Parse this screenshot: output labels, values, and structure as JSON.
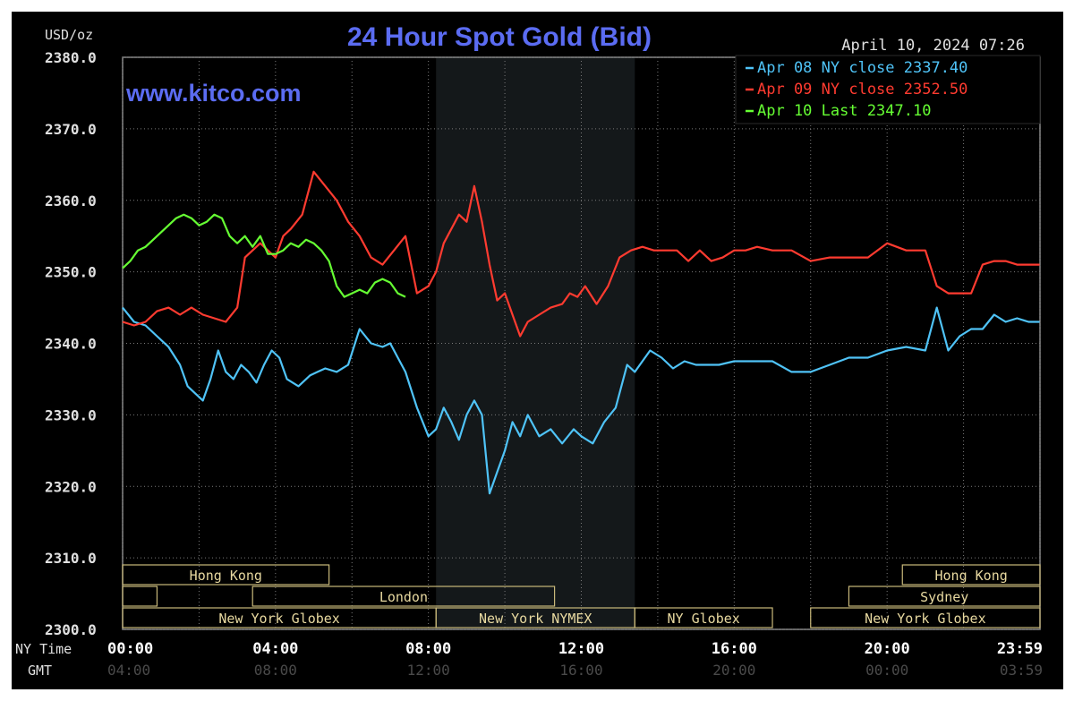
{
  "chart_data": {
    "type": "line",
    "title": "24 Hour Spot Gold (Bid)",
    "watermark": "www.kitco.com",
    "timestamp": "April 10, 2024 07:26",
    "unit_label": "USD/oz",
    "ylim": [
      2300,
      2380
    ],
    "y_ticks": [
      "2380.0",
      "2370.0",
      "2360.0",
      "2350.0",
      "2340.0",
      "2330.0",
      "2320.0",
      "2310.0",
      "2300.0"
    ],
    "x_row_labels": {
      "ny": "NY Time",
      "gmt": "GMT"
    },
    "x_ticks_ny": [
      "00:00",
      "04:00",
      "08:00",
      "12:00",
      "16:00",
      "20:00",
      "23:59"
    ],
    "x_ticks_gmt": [
      "04:00",
      "08:00",
      "12:00",
      "16:00",
      "20:00",
      "00:00",
      "03:59"
    ],
    "x_tick_hours": [
      0,
      4,
      8,
      12,
      16,
      20,
      24
    ],
    "shaded_interval_hours": [
      8.2,
      13.4
    ],
    "sessions": [
      {
        "label": "Hong Kong",
        "start": 0,
        "end": 5.4,
        "row": 0
      },
      {
        "label": "",
        "start": 0,
        "end": 0.9,
        "row": 1
      },
      {
        "label": "London",
        "start": 3.4,
        "end": 11.3,
        "row": 1
      },
      {
        "label": "New York Globex",
        "start": 0,
        "end": 8.2,
        "row": 2
      },
      {
        "label": "New York NYMEX",
        "start": 8.2,
        "end": 13.4,
        "row": 2
      },
      {
        "label": "NY Globex",
        "start": 13.4,
        "end": 17.0,
        "row": 2
      },
      {
        "label": "Hong Kong",
        "start": 20.4,
        "end": 24,
        "row": 0
      },
      {
        "label": "Sydney",
        "start": 19.0,
        "end": 24,
        "row": 1
      },
      {
        "label": "New York Globex",
        "start": 18.0,
        "end": 24,
        "row": 2
      }
    ],
    "grid": true,
    "legend_position": "top-right",
    "series": [
      {
        "name": "Apr 08 NY close 2337.40",
        "color": "#4fc3f7",
        "x": [
          0,
          0.3,
          0.6,
          0.9,
          1.2,
          1.5,
          1.7,
          1.9,
          2.1,
          2.3,
          2.5,
          2.7,
          2.9,
          3.1,
          3.3,
          3.5,
          3.7,
          3.9,
          4.1,
          4.3,
          4.6,
          4.9,
          5.1,
          5.3,
          5.6,
          5.9,
          6.2,
          6.5,
          6.8,
          7.0,
          7.2,
          7.4,
          7.7,
          8.0,
          8.2,
          8.4,
          8.6,
          8.8,
          9.0,
          9.2,
          9.4,
          9.6,
          9.8,
          10.0,
          10.2,
          10.4,
          10.6,
          10.9,
          11.2,
          11.5,
          11.8,
          12.0,
          12.3,
          12.6,
          12.9,
          13.2,
          13.4,
          13.6,
          13.8,
          14.1,
          14.4,
          14.7,
          15.0,
          15.3,
          15.6,
          16.0,
          16.5,
          17.0,
          17.5,
          18.0,
          18.5,
          19.0,
          19.5,
          20.0,
          20.5,
          21.0,
          21.3,
          21.6,
          21.9,
          22.2,
          22.5,
          22.8,
          23.1,
          23.4,
          23.7,
          23.99
        ],
        "y": [
          2345.0,
          2343.0,
          2342.5,
          2341.0,
          2339.5,
          2337.0,
          2334.0,
          2333.0,
          2332.0,
          2335.0,
          2339.0,
          2336.0,
          2335.0,
          2337.0,
          2336.0,
          2334.5,
          2337.0,
          2339.0,
          2338.0,
          2335.0,
          2334.0,
          2335.5,
          2336.0,
          2336.5,
          2336.0,
          2337.0,
          2342.0,
          2340.0,
          2339.5,
          2340.0,
          2338.0,
          2336.0,
          2331.0,
          2327.0,
          2328.0,
          2331.0,
          2329.0,
          2326.5,
          2330.0,
          2332.0,
          2330.0,
          2319.0,
          2322.0,
          2325.0,
          2329.0,
          2327.0,
          2330.0,
          2327.0,
          2328.0,
          2326.0,
          2328.0,
          2327.0,
          2326.0,
          2329.0,
          2331.0,
          2337.0,
          2336.0,
          2337.5,
          2339.0,
          2338.0,
          2336.5,
          2337.5,
          2337.0,
          2337.0,
          2337.0,
          2337.5,
          2337.5,
          2337.5,
          2336.0,
          2336.0,
          2337.0,
          2338.0,
          2338.0,
          2339.0,
          2339.5,
          2339.0,
          2345.0,
          2339.0,
          2341.0,
          2342.0,
          2342.0,
          2344.0,
          2343.0,
          2343.5,
          2343.0,
          2343.0
        ]
      },
      {
        "name": "Apr 09 NY close 2352.50",
        "color": "#ff3b30",
        "x": [
          0,
          0.3,
          0.6,
          0.9,
          1.2,
          1.5,
          1.8,
          2.1,
          2.4,
          2.7,
          3.0,
          3.2,
          3.4,
          3.6,
          3.8,
          4.0,
          4.2,
          4.4,
          4.7,
          5.0,
          5.3,
          5.6,
          5.9,
          6.2,
          6.5,
          6.8,
          7.1,
          7.4,
          7.7,
          8.0,
          8.2,
          8.4,
          8.6,
          8.8,
          9.0,
          9.2,
          9.4,
          9.6,
          9.8,
          10.0,
          10.2,
          10.4,
          10.6,
          10.9,
          11.2,
          11.5,
          11.7,
          11.9,
          12.1,
          12.4,
          12.7,
          13.0,
          13.3,
          13.6,
          13.9,
          14.2,
          14.5,
          14.8,
          15.1,
          15.4,
          15.7,
          16.0,
          16.3,
          16.6,
          17.0,
          17.5,
          18.0,
          18.5,
          19.0,
          19.5,
          20.0,
          20.5,
          21.0,
          21.3,
          21.6,
          21.9,
          22.2,
          22.5,
          22.8,
          23.1,
          23.4,
          23.7,
          23.99
        ],
        "y": [
          2343.0,
          2342.5,
          2343.0,
          2344.5,
          2345.0,
          2344.0,
          2345.0,
          2344.0,
          2343.5,
          2343.0,
          2345.0,
          2352.0,
          2353.0,
          2354.0,
          2353.0,
          2352.0,
          2355.0,
          2356.0,
          2358.0,
          2364.0,
          2362.0,
          2360.0,
          2357.0,
          2355.0,
          2352.0,
          2351.0,
          2353.0,
          2355.0,
          2347.0,
          2348.0,
          2350.0,
          2354.0,
          2356.0,
          2358.0,
          2357.0,
          2362.0,
          2357.0,
          2351.0,
          2346.0,
          2347.0,
          2344.0,
          2341.0,
          2343.0,
          2344.0,
          2345.0,
          2345.5,
          2347.0,
          2346.5,
          2348.0,
          2345.5,
          2348.0,
          2352.0,
          2353.0,
          2353.5,
          2353.0,
          2353.0,
          2353.0,
          2351.5,
          2353.0,
          2351.5,
          2352.0,
          2353.0,
          2353.0,
          2353.5,
          2353.0,
          2353.0,
          2351.5,
          2352.0,
          2352.0,
          2352.0,
          2354.0,
          2353.0,
          2353.0,
          2348.0,
          2347.0,
          2347.0,
          2347.0,
          2351.0,
          2351.5,
          2351.5,
          2351.0,
          2351.0,
          2351.0
        ]
      },
      {
        "name": "Apr 10 Last 2347.10",
        "color": "#66ff33",
        "x": [
          0,
          0.2,
          0.4,
          0.6,
          0.8,
          1.0,
          1.2,
          1.4,
          1.6,
          1.8,
          2.0,
          2.2,
          2.4,
          2.6,
          2.8,
          3.0,
          3.2,
          3.4,
          3.6,
          3.8,
          4.0,
          4.2,
          4.4,
          4.6,
          4.8,
          5.0,
          5.2,
          5.4,
          5.6,
          5.8,
          6.0,
          6.2,
          6.4,
          6.6,
          6.8,
          7.0,
          7.2,
          7.4
        ],
        "y": [
          2350.5,
          2351.5,
          2353.0,
          2353.5,
          2354.5,
          2355.5,
          2356.5,
          2357.5,
          2358.0,
          2357.5,
          2356.5,
          2357.0,
          2358.0,
          2357.5,
          2355.0,
          2354.0,
          2355.0,
          2353.5,
          2355.0,
          2352.5,
          2352.5,
          2353.0,
          2354.0,
          2353.5,
          2354.5,
          2354.0,
          2353.0,
          2351.5,
          2348.0,
          2346.5,
          2347.0,
          2347.5,
          2347.0,
          2348.5,
          2349.0,
          2348.5,
          2347.0,
          2346.5
        ]
      }
    ]
  }
}
